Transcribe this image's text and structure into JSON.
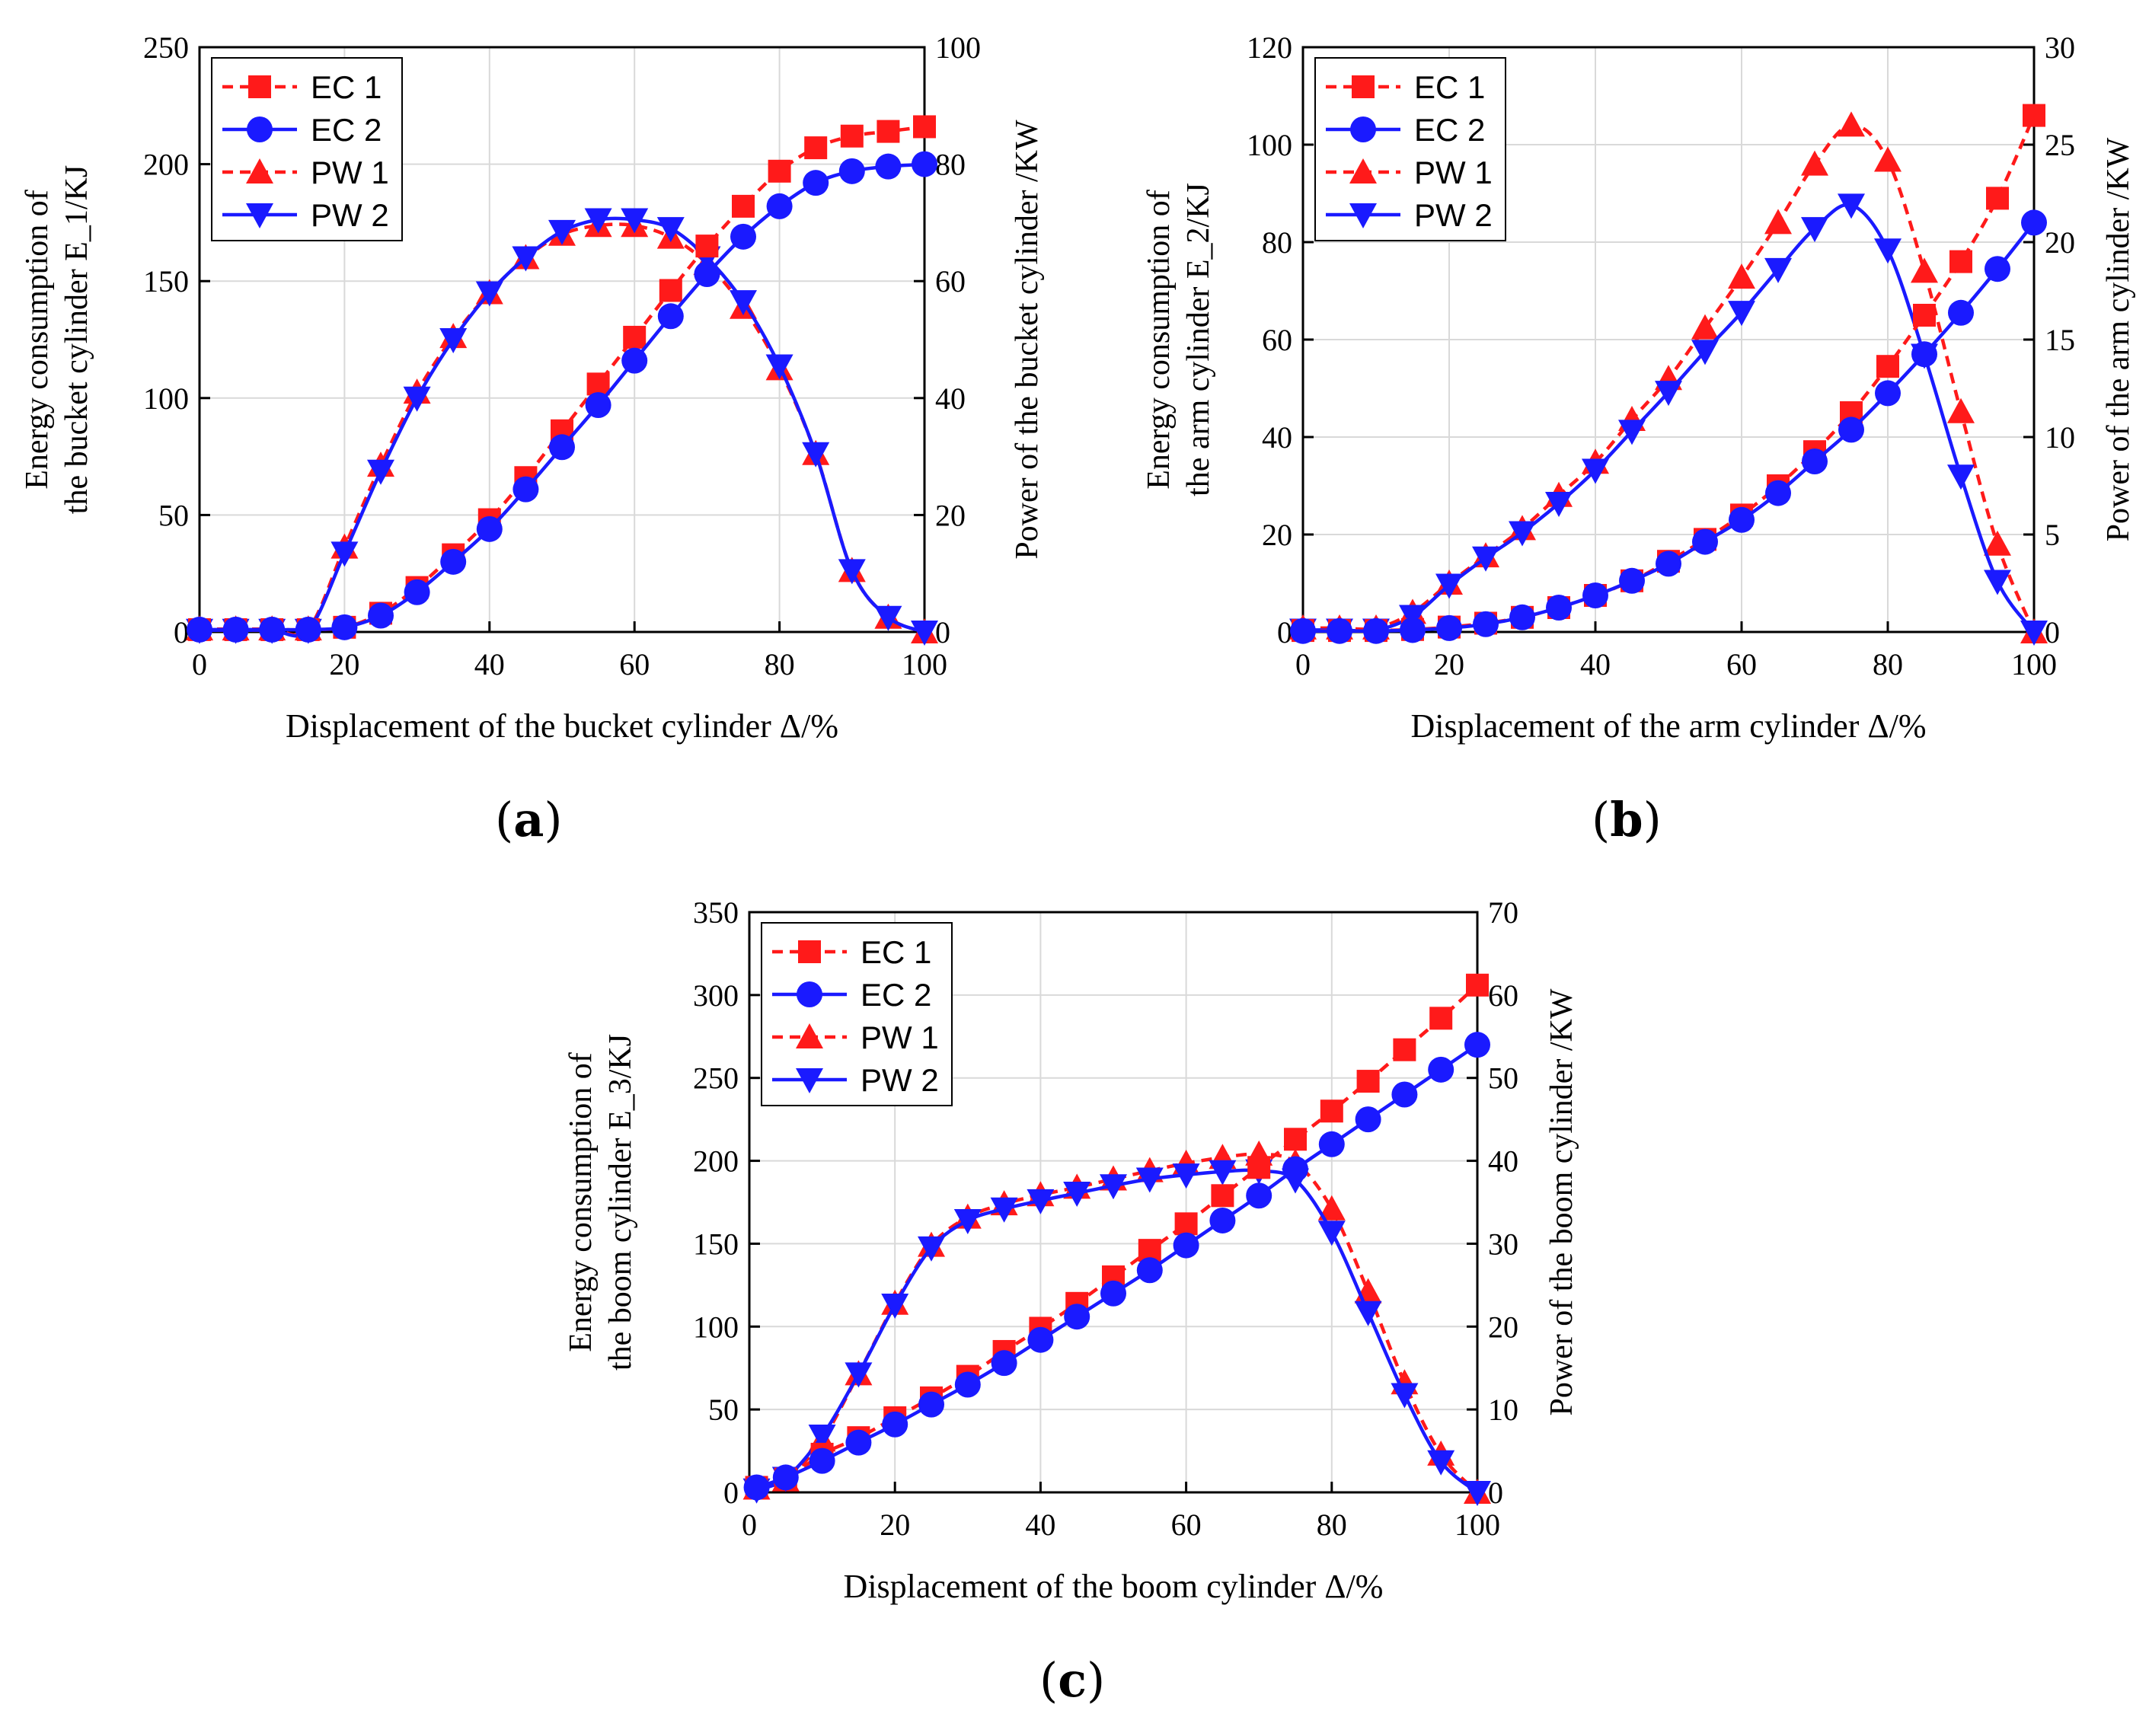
{
  "colors": {
    "red": "#ff1a1a",
    "blue": "#1a1aff",
    "grid": "#d9d9d9",
    "axis": "#000000"
  },
  "legend_placement": "top-left",
  "legend_labels": [
    "EC 1",
    "EC 2",
    "PW 1",
    "PW 2"
  ],
  "captions": {
    "a": "a",
    "b": "b",
    "c": "c"
  },
  "chart_data": [
    {
      "type": "line",
      "panel_label": "(a)",
      "xlabel": "Displacement of the bucket cylinder  Δ/%",
      "ylabel_left": [
        "Energy consumption of",
        "the bucket cylinder E_1/KJ"
      ],
      "ylabel_right": "Power of the bucket cylinder /KW",
      "xlim": [
        0,
        100
      ],
      "ylim_left": [
        0,
        250
      ],
      "ylim_right": [
        0,
        100
      ],
      "x_ticks": [
        0,
        20,
        40,
        60,
        80,
        100
      ],
      "y_left_ticks": [
        0,
        50,
        100,
        150,
        200,
        250
      ],
      "y_right_ticks": [
        0,
        20,
        40,
        60,
        80,
        100
      ],
      "grid": true,
      "x": [
        0,
        5,
        10,
        15,
        20,
        25,
        30,
        35,
        40,
        45,
        50,
        55,
        60,
        65,
        70,
        75,
        80,
        85,
        90,
        95,
        100
      ],
      "series": [
        {
          "name": "EC 1",
          "axis": "left",
          "style": "dashed",
          "color": "red",
          "marker": "square",
          "values": [
            1,
            1,
            1,
            1,
            2,
            8,
            19,
            33,
            48,
            66,
            86,
            106,
            126,
            146,
            165,
            182,
            197,
            207,
            212,
            214,
            216
          ]
        },
        {
          "name": "EC 2",
          "axis": "left",
          "style": "solid",
          "color": "blue",
          "marker": "circle",
          "values": [
            1,
            1,
            1,
            1,
            2,
            7,
            17,
            30,
            44,
            61,
            79,
            97,
            116,
            135,
            153,
            169,
            182,
            192,
            197,
            199,
            200
          ]
        },
        {
          "name": "PW 1",
          "axis": "right",
          "style": "dashed",
          "color": "red",
          "marker": "triangle-up",
          "values": [
            0.5,
            0.5,
            0.5,
            0.5,
            14.5,
            28.5,
            41,
            50.5,
            58,
            64,
            68,
            69.5,
            69.5,
            67.5,
            63,
            55.5,
            45,
            30.5,
            10.5,
            2.5,
            0
          ]
        },
        {
          "name": "PW 2",
          "axis": "right",
          "style": "solid",
          "color": "blue",
          "marker": "triangle-down",
          "values": [
            0.3,
            0.3,
            0.3,
            0.3,
            13.5,
            27.5,
            40,
            50,
            58,
            64,
            68.5,
            70.5,
            70.5,
            69,
            64,
            56.5,
            45.5,
            30.5,
            10.5,
            2.5,
            0
          ]
        }
      ]
    },
    {
      "type": "line",
      "panel_label": "(b)",
      "xlabel": "Displacement of the arm cylinder Δ/%",
      "ylabel_left": [
        "Energy consumption of",
        "the arm cylinder E_2/KJ"
      ],
      "ylabel_right": "Power of the arm cylinder /KW",
      "xlim": [
        0,
        100
      ],
      "ylim_left": [
        0,
        120
      ],
      "ylim_right": [
        0,
        30
      ],
      "x_ticks": [
        0,
        20,
        40,
        60,
        80,
        100
      ],
      "y_left_ticks": [
        0,
        20,
        40,
        60,
        80,
        100,
        120
      ],
      "y_right_ticks": [
        0,
        5,
        10,
        15,
        20,
        25,
        30
      ],
      "grid": true,
      "x": [
        0,
        5,
        10,
        15,
        20,
        25,
        30,
        35,
        40,
        45,
        50,
        55,
        60,
        65,
        70,
        75,
        80,
        85,
        90,
        95,
        100
      ],
      "series": [
        {
          "name": "EC 1",
          "axis": "left",
          "style": "dashed",
          "color": "red",
          "marker": "square",
          "values": [
            0.3,
            0.3,
            0.3,
            0.5,
            1,
            1.8,
            3,
            5,
            7.5,
            10.5,
            14.5,
            19,
            24,
            30,
            37,
            45,
            54.5,
            65,
            76,
            89,
            106
          ]
        },
        {
          "name": "EC 2",
          "axis": "left",
          "style": "solid",
          "color": "blue",
          "marker": "circle",
          "values": [
            0.2,
            0.2,
            0.2,
            0.4,
            0.8,
            1.6,
            3,
            5,
            7.5,
            10.5,
            14,
            18.5,
            23,
            28.5,
            35,
            41.5,
            49,
            57,
            65.5,
            74.5,
            84
          ]
        },
        {
          "name": "PW 1",
          "axis": "right",
          "style": "dashed",
          "color": "red",
          "marker": "triangle-up",
          "values": [
            0.2,
            0.2,
            0.2,
            1.0,
            2.5,
            3.9,
            5.3,
            7,
            8.7,
            10.9,
            13,
            15.6,
            18.2,
            21,
            24,
            26,
            24.2,
            18.5,
            11.3,
            4.5,
            0
          ]
        },
        {
          "name": "PW 2",
          "axis": "right",
          "style": "solid",
          "color": "blue",
          "marker": "triangle-down",
          "values": [
            0.1,
            0.1,
            0.1,
            0.8,
            2.4,
            3.8,
            5.1,
            6.6,
            8.3,
            10.3,
            12.3,
            14.4,
            16.4,
            18.6,
            20.7,
            21.9,
            19.6,
            14.2,
            8,
            2.6,
            0
          ]
        }
      ]
    },
    {
      "type": "line",
      "panel_label": "(c)",
      "xlabel": "Displacement of the boom cylinder Δ/%",
      "ylabel_left": [
        "Energy consumption of",
        "the boom cylinder E_3/KJ"
      ],
      "ylabel_right": "Power of the boom cylinder /KW",
      "xlim": [
        0,
        100
      ],
      "ylim_left": [
        0,
        350
      ],
      "ylim_right": [
        0,
        70
      ],
      "x_ticks": [
        0,
        20,
        40,
        60,
        80,
        100
      ],
      "y_left_ticks": [
        0,
        50,
        100,
        150,
        200,
        250,
        300,
        350
      ],
      "y_right_ticks": [
        0,
        10,
        20,
        30,
        40,
        50,
        60,
        70
      ],
      "grid": true,
      "x": [
        1,
        5,
        10,
        15,
        20,
        25,
        30,
        35,
        40,
        45,
        50,
        55,
        60,
        65,
        70,
        75,
        80,
        85,
        90,
        95,
        100
      ],
      "series": [
        {
          "name": "EC 1",
          "axis": "left",
          "style": "dashed",
          "color": "red",
          "marker": "square",
          "values": [
            3,
            8,
            23,
            33,
            45,
            57,
            70,
            85,
            99,
            114,
            130,
            146,
            162,
            179,
            196,
            213,
            230,
            248,
            267,
            286,
            306
          ]
        },
        {
          "name": "EC 2",
          "axis": "left",
          "style": "solid",
          "color": "blue",
          "marker": "circle",
          "values": [
            3,
            9,
            19,
            30,
            41,
            53,
            65,
            78,
            92,
            106,
            120,
            134,
            149,
            164,
            179,
            195,
            210,
            225,
            240,
            255,
            270
          ]
        },
        {
          "name": "PW 1",
          "axis": "right",
          "style": "dashed",
          "color": "red",
          "marker": "triangle-up",
          "values": [
            0.5,
            1.5,
            6.3,
            14.3,
            22.8,
            29.8,
            33.2,
            34.8,
            35.9,
            36.8,
            37.8,
            38.8,
            39.7,
            40.4,
            40.8,
            39.8,
            34.2,
            24.2,
            13.2,
            4.6,
            0
          ]
        },
        {
          "name": "PW 2",
          "axis": "right",
          "style": "solid",
          "color": "blue",
          "marker": "triangle-down",
          "values": [
            0.3,
            1.7,
            6.8,
            14.3,
            22.6,
            29.5,
            32.8,
            34.2,
            35.2,
            36.1,
            37,
            37.8,
            38.3,
            38.7,
            38.8,
            37.7,
            31.4,
            21.7,
            11.8,
            3.7,
            0
          ]
        }
      ]
    }
  ]
}
